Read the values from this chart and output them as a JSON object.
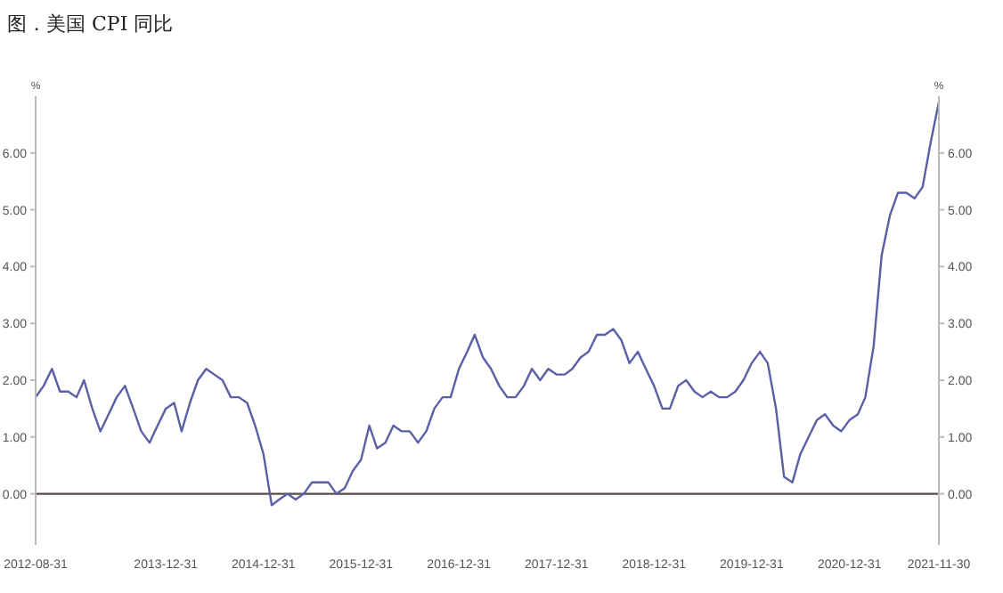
{
  "chart_data": {
    "type": "line",
    "title": "图．美国 CPI 同比",
    "ylabel": "%",
    "y2label": "%",
    "x": [
      "2012-08-31",
      "2012-09-30",
      "2012-10-31",
      "2012-11-30",
      "2012-12-31",
      "2013-01-31",
      "2013-02-28",
      "2013-03-31",
      "2013-04-30",
      "2013-05-31",
      "2013-06-30",
      "2013-07-31",
      "2013-08-31",
      "2013-09-30",
      "2013-10-31",
      "2013-11-30",
      "2013-12-31",
      "2014-01-31",
      "2014-02-28",
      "2014-03-31",
      "2014-04-30",
      "2014-05-31",
      "2014-06-30",
      "2014-07-31",
      "2014-08-31",
      "2014-09-30",
      "2014-10-31",
      "2014-11-30",
      "2014-12-31",
      "2015-01-31",
      "2015-02-28",
      "2015-03-31",
      "2015-04-30",
      "2015-05-31",
      "2015-06-30",
      "2015-07-31",
      "2015-08-31",
      "2015-09-30",
      "2015-10-31",
      "2015-11-30",
      "2015-12-31",
      "2016-01-31",
      "2016-02-29",
      "2016-03-31",
      "2016-04-30",
      "2016-05-31",
      "2016-06-30",
      "2016-07-31",
      "2016-08-31",
      "2016-09-30",
      "2016-10-31",
      "2016-11-30",
      "2016-12-31",
      "2017-01-31",
      "2017-02-28",
      "2017-03-31",
      "2017-04-30",
      "2017-05-31",
      "2017-06-30",
      "2017-07-31",
      "2017-08-31",
      "2017-09-30",
      "2017-10-31",
      "2017-11-30",
      "2017-12-31",
      "2018-01-31",
      "2018-02-28",
      "2018-03-31",
      "2018-04-30",
      "2018-05-31",
      "2018-06-30",
      "2018-07-31",
      "2018-08-31",
      "2018-09-30",
      "2018-10-31",
      "2018-11-30",
      "2018-12-31",
      "2019-01-31",
      "2019-02-28",
      "2019-03-31",
      "2019-04-30",
      "2019-05-31",
      "2019-06-30",
      "2019-07-31",
      "2019-08-31",
      "2019-09-30",
      "2019-10-31",
      "2019-11-30",
      "2019-12-31",
      "2020-01-31",
      "2020-02-29",
      "2020-03-31",
      "2020-04-30",
      "2020-05-31",
      "2020-06-30",
      "2020-07-31",
      "2020-08-31",
      "2020-09-30",
      "2020-10-31",
      "2020-11-30",
      "2020-12-31",
      "2021-01-31",
      "2021-02-28",
      "2021-03-31",
      "2021-04-30",
      "2021-05-31",
      "2021-06-30",
      "2021-07-31",
      "2021-08-31",
      "2021-09-30",
      "2021-10-31",
      "2021-11-30"
    ],
    "series": [
      {
        "color": "#5a5fa6",
        "values": [
          1.7,
          1.9,
          2.2,
          1.8,
          1.8,
          1.7,
          2.0,
          1.5,
          1.1,
          1.4,
          1.7,
          1.9,
          1.5,
          1.1,
          0.9,
          1.2,
          1.5,
          1.6,
          1.1,
          1.6,
          2.0,
          2.2,
          2.1,
          2.0,
          1.7,
          1.7,
          1.6,
          1.2,
          0.7,
          -0.2,
          -0.1,
          0.0,
          -0.1,
          0.0,
          0.2,
          0.2,
          0.2,
          0.0,
          0.1,
          0.4,
          0.6,
          1.2,
          0.8,
          0.9,
          1.2,
          1.1,
          1.1,
          0.9,
          1.1,
          1.5,
          1.7,
          1.7,
          2.2,
          2.5,
          2.8,
          2.4,
          2.2,
          1.9,
          1.7,
          1.7,
          1.9,
          2.2,
          2.0,
          2.2,
          2.1,
          2.1,
          2.2,
          2.4,
          2.5,
          2.8,
          2.8,
          2.9,
          2.7,
          2.3,
          2.5,
          2.2,
          1.9,
          1.5,
          1.5,
          1.9,
          2.0,
          1.8,
          1.7,
          1.8,
          1.7,
          1.7,
          1.8,
          2.0,
          2.3,
          2.5,
          2.3,
          1.5,
          0.3,
          0.2,
          0.7,
          1.0,
          1.3,
          1.4,
          1.2,
          1.1,
          1.3,
          1.4,
          1.7,
          2.6,
          4.2,
          4.9,
          5.3,
          5.3,
          5.2,
          5.4,
          6.2,
          6.9
        ]
      }
    ],
    "xlim": [
      "2012-08-31",
      "2021-11-30"
    ],
    "xticks": [
      "2012-08-31",
      "2013-12-31",
      "2014-12-31",
      "2015-12-31",
      "2016-12-31",
      "2017-12-31",
      "2018-12-31",
      "2019-12-31",
      "2020-12-31",
      "2021-11-30"
    ],
    "ylim": [
      -0.9,
      7
    ],
    "yticks": [
      {
        "value": 0,
        "label": "0.00"
      },
      {
        "value": 1,
        "label": "1.00"
      },
      {
        "value": 2,
        "label": "2.00"
      },
      {
        "value": 3,
        "label": "3.00"
      },
      {
        "value": 4,
        "label": "4.00"
      },
      {
        "value": 5,
        "label": "5.00"
      },
      {
        "value": 6,
        "label": "6.00"
      }
    ],
    "y2lim": [
      -0.9,
      7
    ],
    "y2ticks": [
      {
        "value": 0,
        "label": "0.00"
      },
      {
        "value": 1,
        "label": "1.00"
      },
      {
        "value": 2,
        "label": "2.00"
      },
      {
        "value": 3,
        "label": "3.00"
      },
      {
        "value": 4,
        "label": "4.00"
      },
      {
        "value": 5,
        "label": "5.00"
      },
      {
        "value": 6,
        "label": "6.00"
      }
    ],
    "ref_lines": [
      {
        "axis": "y",
        "value": 0,
        "color": "#5a4a4a"
      }
    ],
    "grid": false,
    "legend": false,
    "marker": "none",
    "line_style": "solid"
  }
}
